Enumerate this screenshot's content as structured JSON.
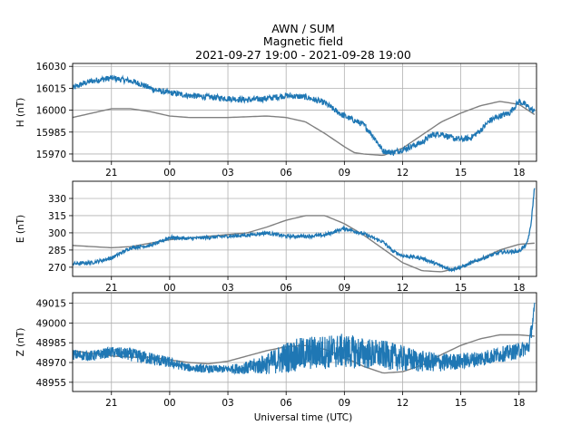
{
  "title_lines": [
    "AWN / SUM",
    "Magnetic field",
    "2021-09-27 19:00 - 2021-09-28 19:00"
  ],
  "xlabel": "Universal time (UTC)",
  "colors": {
    "data": "#1f77b4",
    "model": "#808080",
    "grid": "#b0b0b0"
  },
  "chart_data": [
    {
      "type": "line",
      "ylabel": "H (nT)",
      "xlim": [
        19.0,
        42.9
      ],
      "ylim": [
        15965,
        16032
      ],
      "grid": true,
      "x_ticks": [
        {
          "x": 21,
          "label": "21"
        },
        {
          "x": 24,
          "label": "00"
        },
        {
          "x": 27,
          "label": "03"
        },
        {
          "x": 30,
          "label": "06"
        },
        {
          "x": 33,
          "label": "09"
        },
        {
          "x": 36,
          "label": "12"
        },
        {
          "x": 39,
          "label": "15"
        },
        {
          "x": 42,
          "label": "18"
        }
      ],
      "y_ticks": [
        {
          "y": 15970,
          "label": "15970"
        },
        {
          "y": 15985,
          "label": "15985"
        },
        {
          "y": 16000,
          "label": "16000"
        },
        {
          "y": 16015,
          "label": "16015"
        },
        {
          "y": 16030,
          "label": "16030"
        }
      ],
      "series": [
        {
          "role": "data",
          "noise": 2.0,
          "x": [
            19.0,
            19.5,
            20.0,
            21.0,
            22.0,
            22.5,
            23.0,
            23.5,
            24.0,
            25.0,
            26.0,
            27.0,
            28.0,
            29.0,
            30.0,
            31.0,
            32.0,
            32.5,
            33.0,
            33.5,
            34.0,
            34.5,
            35.0,
            35.5,
            36.0,
            37.0,
            37.5,
            38.0,
            38.5,
            39.0,
            39.5,
            40.0,
            40.5,
            41.0,
            41.5,
            42.0,
            42.3,
            42.6,
            42.8
          ],
          "y": [
            16015,
            16018,
            16020,
            16022,
            16020,
            16018,
            16015,
            16013,
            16012,
            16010,
            16009,
            16008,
            16007,
            16008,
            16010,
            16009,
            16005,
            16000,
            15996,
            15993,
            15990,
            15982,
            15972,
            15971,
            15973,
            15978,
            15983,
            15984,
            15981,
            15980,
            15981,
            15986,
            15993,
            15996,
            15998,
            16006,
            16004,
            16001,
            15999
          ]
        },
        {
          "role": "model",
          "x": [
            19.0,
            20.0,
            21.0,
            22.0,
            23.0,
            24.0,
            25.0,
            27.0,
            29.0,
            30.0,
            31.0,
            32.0,
            33.0,
            33.5,
            34.0,
            35.0,
            36.0,
            37.0,
            38.0,
            39.0,
            40.0,
            41.0,
            42.0,
            42.8
          ],
          "y": [
            15995,
            15998,
            16001,
            16001,
            15999,
            15996,
            15995,
            15995,
            15996,
            15995,
            15992,
            15984,
            15975,
            15971,
            15970,
            15969,
            15974,
            15983,
            15992,
            15998,
            16003,
            16006,
            16004,
            15997
          ]
        }
      ]
    },
    {
      "type": "line",
      "ylabel": "E (nT)",
      "xlim": [
        19.0,
        42.9
      ],
      "ylim": [
        262,
        345
      ],
      "grid": true,
      "x_ticks": [
        {
          "x": 21,
          "label": "21"
        },
        {
          "x": 24,
          "label": "00"
        },
        {
          "x": 27,
          "label": "03"
        },
        {
          "x": 30,
          "label": "06"
        },
        {
          "x": 33,
          "label": "09"
        },
        {
          "x": 36,
          "label": "12"
        },
        {
          "x": 39,
          "label": "15"
        },
        {
          "x": 42,
          "label": "18"
        }
      ],
      "y_ticks": [
        {
          "y": 270,
          "label": "270"
        },
        {
          "y": 285,
          "label": "285"
        },
        {
          "y": 300,
          "label": "300"
        },
        {
          "y": 315,
          "label": "315"
        },
        {
          "y": 330,
          "label": "330"
        }
      ],
      "series": [
        {
          "role": "data",
          "noise": 1.5,
          "x": [
            19.0,
            20.0,
            21.0,
            22.0,
            23.0,
            23.5,
            24.0,
            25.0,
            26.0,
            27.0,
            28.0,
            29.0,
            30.0,
            31.0,
            32.0,
            33.0,
            34.0,
            35.0,
            35.5,
            36.0,
            37.0,
            38.0,
            38.5,
            39.0,
            40.0,
            41.0,
            42.0,
            42.4,
            42.6,
            42.8
          ],
          "y": [
            273,
            274,
            278,
            287,
            289,
            292,
            296,
            295,
            296,
            297,
            298,
            300,
            297,
            297,
            298,
            304,
            299,
            292,
            284,
            280,
            278,
            271,
            268,
            270,
            277,
            283,
            284,
            290,
            305,
            340
          ]
        },
        {
          "role": "model",
          "x": [
            19.0,
            20.0,
            21.0,
            22.0,
            24.0,
            26.0,
            28.0,
            29.0,
            30.0,
            31.0,
            32.0,
            33.0,
            34.0,
            35.0,
            36.0,
            37.0,
            38.0,
            39.0,
            40.0,
            41.0,
            42.0,
            42.8
          ],
          "y": [
            289,
            288,
            287,
            288,
            294,
            297,
            300,
            305,
            311,
            315,
            315,
            308,
            298,
            286,
            274,
            267,
            266,
            270,
            277,
            285,
            290,
            291
          ]
        }
      ]
    },
    {
      "type": "line",
      "ylabel": "Z (nT)",
      "xlim": [
        19.0,
        42.9
      ],
      "ylim": [
        48948,
        49023
      ],
      "grid": true,
      "x_ticks": [
        {
          "x": 21,
          "label": "21"
        },
        {
          "x": 24,
          "label": "00"
        },
        {
          "x": 27,
          "label": "03"
        },
        {
          "x": 30,
          "label": "06"
        },
        {
          "x": 33,
          "label": "09"
        },
        {
          "x": 36,
          "label": "12"
        },
        {
          "x": 39,
          "label": "15"
        },
        {
          "x": 42,
          "label": "18"
        }
      ],
      "y_ticks": [
        {
          "y": 48955,
          "label": "48955"
        },
        {
          "y": 48970,
          "label": "48970"
        },
        {
          "y": 48985,
          "label": "48985"
        },
        {
          "y": 49000,
          "label": "49000"
        },
        {
          "y": 49015,
          "label": "49015"
        }
      ],
      "series": [
        {
          "role": "data",
          "x": [
            19.0,
            20.0,
            21.0,
            22.0,
            23.0,
            24.0,
            25.0,
            26.0,
            27.0,
            28.0,
            29.0,
            30.0,
            31.0,
            32.0,
            33.0,
            34.0,
            35.0,
            36.0,
            37.0,
            38.0,
            39.0,
            40.0,
            41.0,
            42.0,
            42.5,
            42.8
          ],
          "y": [
            48976,
            48975,
            48978,
            48976,
            48973,
            48970,
            48966,
            48965,
            48965,
            48966,
            48969,
            48974,
            48977,
            48978,
            48979,
            48977,
            48976,
            48973,
            48971,
            48970,
            48971,
            48973,
            48976,
            48979,
            48982,
            49010
          ],
          "amp": [
            4,
            4,
            4,
            5,
            5,
            4,
            3,
            3,
            3,
            5,
            8,
            12,
            13,
            13,
            13,
            12,
            11,
            10,
            8,
            7,
            6,
            6,
            6,
            6,
            6,
            6
          ]
        },
        {
          "role": "model",
          "x": [
            19.0,
            20.0,
            21.0,
            22.0,
            23.0,
            24.0,
            25.0,
            26.0,
            27.0,
            28.0,
            29.0,
            30.0,
            31.0,
            32.0,
            33.0,
            34.0,
            35.0,
            36.0,
            37.0,
            38.0,
            39.0,
            40.0,
            41.0,
            42.0,
            42.8
          ],
          "y": [
            48979,
            48977,
            48975,
            48974,
            48974,
            48972,
            48970,
            48969,
            48971,
            48975,
            48979,
            48982,
            48983,
            48980,
            48974,
            48967,
            48962,
            48963,
            48968,
            48976,
            48983,
            48988,
            48991,
            48991,
            48990
          ]
        }
      ]
    }
  ]
}
